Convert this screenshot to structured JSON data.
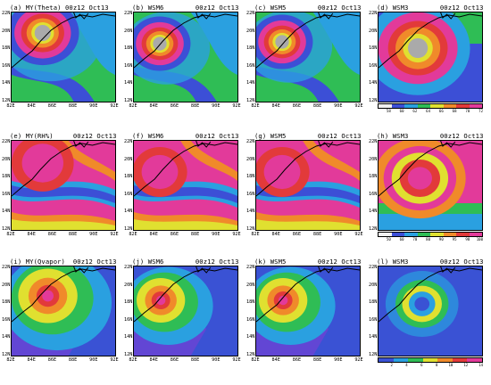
{
  "panels": [
    {
      "title": "(a) MY(Theta) 00z12 Oct13",
      "bg": "#2fbd55",
      "kind": "theta",
      "eye": [
        0.3,
        0.23
      ],
      "r": 0.26
    },
    {
      "title": "(b) WSM6        00z12 Oct13",
      "bg": "#2fbd55",
      "kind": "theta",
      "eye": [
        0.25,
        0.35
      ],
      "r": 0.22
    },
    {
      "title": "(c) WSM5        00z12 Oct13",
      "bg": "#2fbd55",
      "kind": "theta",
      "eye": [
        0.25,
        0.33
      ],
      "r": 0.22
    },
    {
      "title": "(d) WSM3        00z12 Oct13",
      "bg": "#3c4fd6",
      "kind": "thetaRing",
      "eye": [
        0.38,
        0.4
      ],
      "r": 0.24
    },
    {
      "title": "(e) MY(RH%)     00z12 Oct13",
      "bg": "#e23a9a",
      "kind": "rh",
      "eye": [
        0.3,
        0.25
      ],
      "r": 0.25
    },
    {
      "title": "(f) WSM6        00z12 Oct13",
      "bg": "#e23a9a",
      "kind": "rh",
      "eye": [
        0.25,
        0.35
      ],
      "r": 0.22
    },
    {
      "title": "(g) WSM5        00z12 Oct13",
      "bg": "#e23a9a",
      "kind": "rh",
      "eye": [
        0.25,
        0.35
      ],
      "r": 0.22
    },
    {
      "title": "(h) WSM3        00z12 Oct13",
      "bg": "#e23a9a",
      "kind": "rhRing",
      "eye": [
        0.4,
        0.42
      ],
      "r": 0.26
    },
    {
      "title": "(i) MY(Qvapor)  00z12 Oct13",
      "bg": "#3a52d4",
      "kind": "qv",
      "eye": [
        0.35,
        0.33
      ],
      "r": 0.22
    },
    {
      "title": "(j) WSM6        00z12 Oct13",
      "bg": "#3a52d4",
      "kind": "qv",
      "eye": [
        0.26,
        0.38
      ],
      "r": 0.18
    },
    {
      "title": "(k) WSM5        00z12 Oct13",
      "bg": "#3a52d4",
      "kind": "qv",
      "eye": [
        0.26,
        0.38
      ],
      "r": 0.18
    },
    {
      "title": "(l) WSM3        00z12 Oct13",
      "bg": "#3a52d4",
      "kind": "qvRing",
      "eye": [
        0.42,
        0.42
      ],
      "r": 0.16
    }
  ],
  "yticks": [
    "22N",
    "20N",
    "18N",
    "16N",
    "14N",
    "12N"
  ],
  "xticks": [
    "82E",
    "84E",
    "86E",
    "88E",
    "90E",
    "92E"
  ],
  "colorbars": [
    {
      "row": 0,
      "colors": [
        "#f0f0f0",
        "#3c4fd6",
        "#2aa0e0",
        "#2fbd55",
        "#e0e030",
        "#f08a2a",
        "#e23a3a",
        "#e23a9a"
      ],
      "labels": [
        "58",
        "60",
        "62",
        "64",
        "66",
        "68",
        "70",
        "72"
      ]
    },
    {
      "row": 1,
      "colors": [
        "#f0f0f0",
        "#3c4fd6",
        "#2aa0e0",
        "#2fbd55",
        "#e0e030",
        "#f08a2a",
        "#e23a3a",
        "#e23a9a"
      ],
      "labels": [
        "50",
        "60",
        "70",
        "80",
        "90",
        "95",
        "98",
        "100"
      ]
    },
    {
      "row": 2,
      "colors": [
        "#3a52d4",
        "#2aa0e0",
        "#2fbd55",
        "#e0e030",
        "#f08a2a",
        "#e23a3a",
        "#e23a9a"
      ],
      "labels": [
        "2",
        "4",
        "6",
        "8",
        "10",
        "12",
        "14"
      ]
    }
  ]
}
